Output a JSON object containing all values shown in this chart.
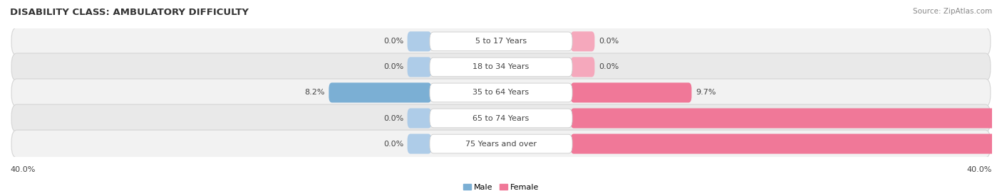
{
  "title": "DISABILITY CLASS: AMBULATORY DIFFICULTY",
  "source": "Source: ZipAtlas.com",
  "categories": [
    "5 to 17 Years",
    "18 to 34 Years",
    "35 to 64 Years",
    "65 to 74 Years",
    "75 Years and over"
  ],
  "male_values": [
    0.0,
    0.0,
    8.2,
    0.0,
    0.0
  ],
  "female_values": [
    0.0,
    0.0,
    9.7,
    35.0,
    35.7
  ],
  "max_val": 40.0,
  "male_color": "#7bafd4",
  "female_color": "#f07898",
  "male_stub_color": "#aecce8",
  "female_stub_color": "#f5a8bc",
  "row_colors": [
    "#f0f0f0",
    "#e8e8e8",
    "#f0f0f0",
    "#e8e8e8",
    "#e0e0e0"
  ],
  "label_fontsize": 8.0,
  "title_fontsize": 9.5,
  "source_fontsize": 7.5,
  "axis_fontsize": 8.0,
  "legend_male": "Male",
  "legend_female": "Female"
}
